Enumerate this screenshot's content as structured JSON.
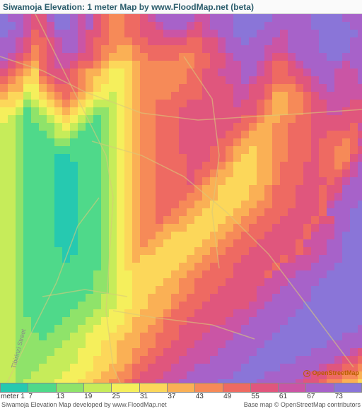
{
  "header": {
    "title": "Siwamoja Elevation: 1 meter Map by www.FloodMap.net (beta)"
  },
  "map": {
    "grid_cols": 48,
    "grid_rows": 48,
    "cell_size": 11,
    "street_label": "Tibirinzi Street",
    "osm_attribution": "OpenStreetMap",
    "palette": {
      "0": "#26c9b0",
      "1": "#4fd98a",
      "2": "#8fe36a",
      "3": "#c6ec5a",
      "4": "#f5ef5c",
      "5": "#fcd75a",
      "6": "#fab055",
      "7": "#f68a58",
      "8": "#ee6a62",
      "9": "#e0567d",
      "10": "#ca55a5",
      "11": "#a762c9",
      "12": "#8a75d8"
    },
    "road_color": "#d9c97a",
    "road_width": 1.5,
    "roads": [
      "M 50 0 L 80 60 L 120 140 L 150 200 L 160 260 L 155 340 L 150 420 L 160 500 L 170 522",
      "M 0 60 L 60 80 L 120 110 L 200 140 L 280 150 L 360 145 L 440 140 L 512 135",
      "M 130 180 L 200 200 L 260 230 L 320 280 L 380 340 L 440 420 L 500 500",
      "M 140 260 L 110 300 L 80 380 L 40 460 L 10 522",
      "M 260 60 L 300 120 L 310 200 L 300 280 L 310 360",
      "M 160 420 L 220 430 L 300 440 L 360 460",
      "M 60 400 L 120 390 L 180 400"
    ],
    "elevation_grid": [
      "cbba99bccbab9877889abbbbbaabbbcccccbbbbbccccbbbb",
      "ccba99accbab98778899abbba9abbbccccbbbbbbcccccbbb",
      "cbba89abbba9987788999aaa99aabbcccbbbabbbbcccccbb",
      "bba9889abba98877788999998899abbcbbbaabbbbccccbbb",
      "bba9789abba98776678888888899abbbbbaaabbbbccccbbb",
      "ba98789aaa9987666778888778899abbbba99abbbbccbbbb",
      "a987689aa98876555677777778899aabba9889abbbbbabbb",
      "9876589998766544567777778899aaabba98899abbbaaabb",
      "87655789987655445677777788999aaba9988899abbaaabb",
      "766446788876544456777778889999aa99877789aabaaaab",
      "655345678765443456777788889999aa998667789aaaaaab",
      "554234567654333456778888999999a99876677899aaa99b",
      "443123456543223456778889999999999876677899aa999a",
      "43212234543212345677888999999998876677889999999a",
      "3321122343211234567788899999998876677888999998aa",
      "33211123321112345677888999999887666778889988889a",
      "3321111221111234567788899999887666677888988878aa",
      "33211111111112345677888999988766566778889887789a",
      "3321111001111234567788889998876556677888988779ab",
      "332111100011123456778888998876555667888998878abb",
      "332111100011123456778888988766555667888998889abb",
      "33211110001112345677888898766555566788899989abbb",
      "33211110001112345677888887665555667888999899bbbc",
      "3321111000111234567788887766555566788899989abbbc",
      "332111100011123456778887766555566778889998abbbcc",
      "332111100011123456778877665555667788899998bbbccc",
      "3321111000111234567787766555566778889999899bbccc",
      "33211110001112345677766655556677888999989aabbccc",
      "3321111000111234567766555556677888999998aaabcccc",
      "332111100011123456766555556677888999998aaabbcccc",
      "3321111100111234566655555667788899999989aabbcccc",
      "33211111011112345655555566778889999989aaabbbcccc",
      "332111111111123455555556677888999998aaaabbbccccc",
      "33211111111122344555556677888899998aaabbbbcccccc",
      "3321111111112234455556677888899999aaabbbbccccccc",
      "332111111111223445556667788899999aaabbbbcccccccc",
      "332111111112233445566677888999999aabbbbbcccccccc",
      "33211111112223344556667888999999aabbbbbccccccccc",
      "332111111222334455666788899999aaabbbbbcccccccccc",
      "33221111222334445666788899999aaabbbbbccccccccccb",
      "332211122233444556677889999aaaabbbbbccccccccccbb",
      "33222122233444556677888999aaaabbbbbcccccccccbbbb",
      "3322222233344556667788999aaaabbbbbccccccccbbbbba",
      "332222233344455667788999aaaabbbbbcccccccbbbbba99",
      "33222233334455566788999aaaabbbbbccccccbbbbba9988",
      "3322233334445566788999aaabbbbbbcccccbbbbba998877",
      "332233334445566778999aaabbbbbbccccbbbbba99887766",
      "33233334445566778999aaabbbbbcccccbbbbba998776655"
    ]
  },
  "legend": {
    "unit": "meter",
    "colors": [
      "#26c9b0",
      "#4fd98a",
      "#8fe36a",
      "#c6ec5a",
      "#f5ef5c",
      "#fcd75a",
      "#fab055",
      "#f68a58",
      "#ee6a62",
      "#e0567d",
      "#ca55a5",
      "#a762c9",
      "#8a75d8"
    ],
    "values": [
      "1",
      "7",
      "13",
      "19",
      "25",
      "31",
      "37",
      "43",
      "49",
      "55",
      "61",
      "67",
      "73"
    ]
  },
  "credits": {
    "left": "Siwamoja Elevation Map developed by www.FloodMap.net",
    "right": "Base map © OpenStreetMap contributors"
  }
}
